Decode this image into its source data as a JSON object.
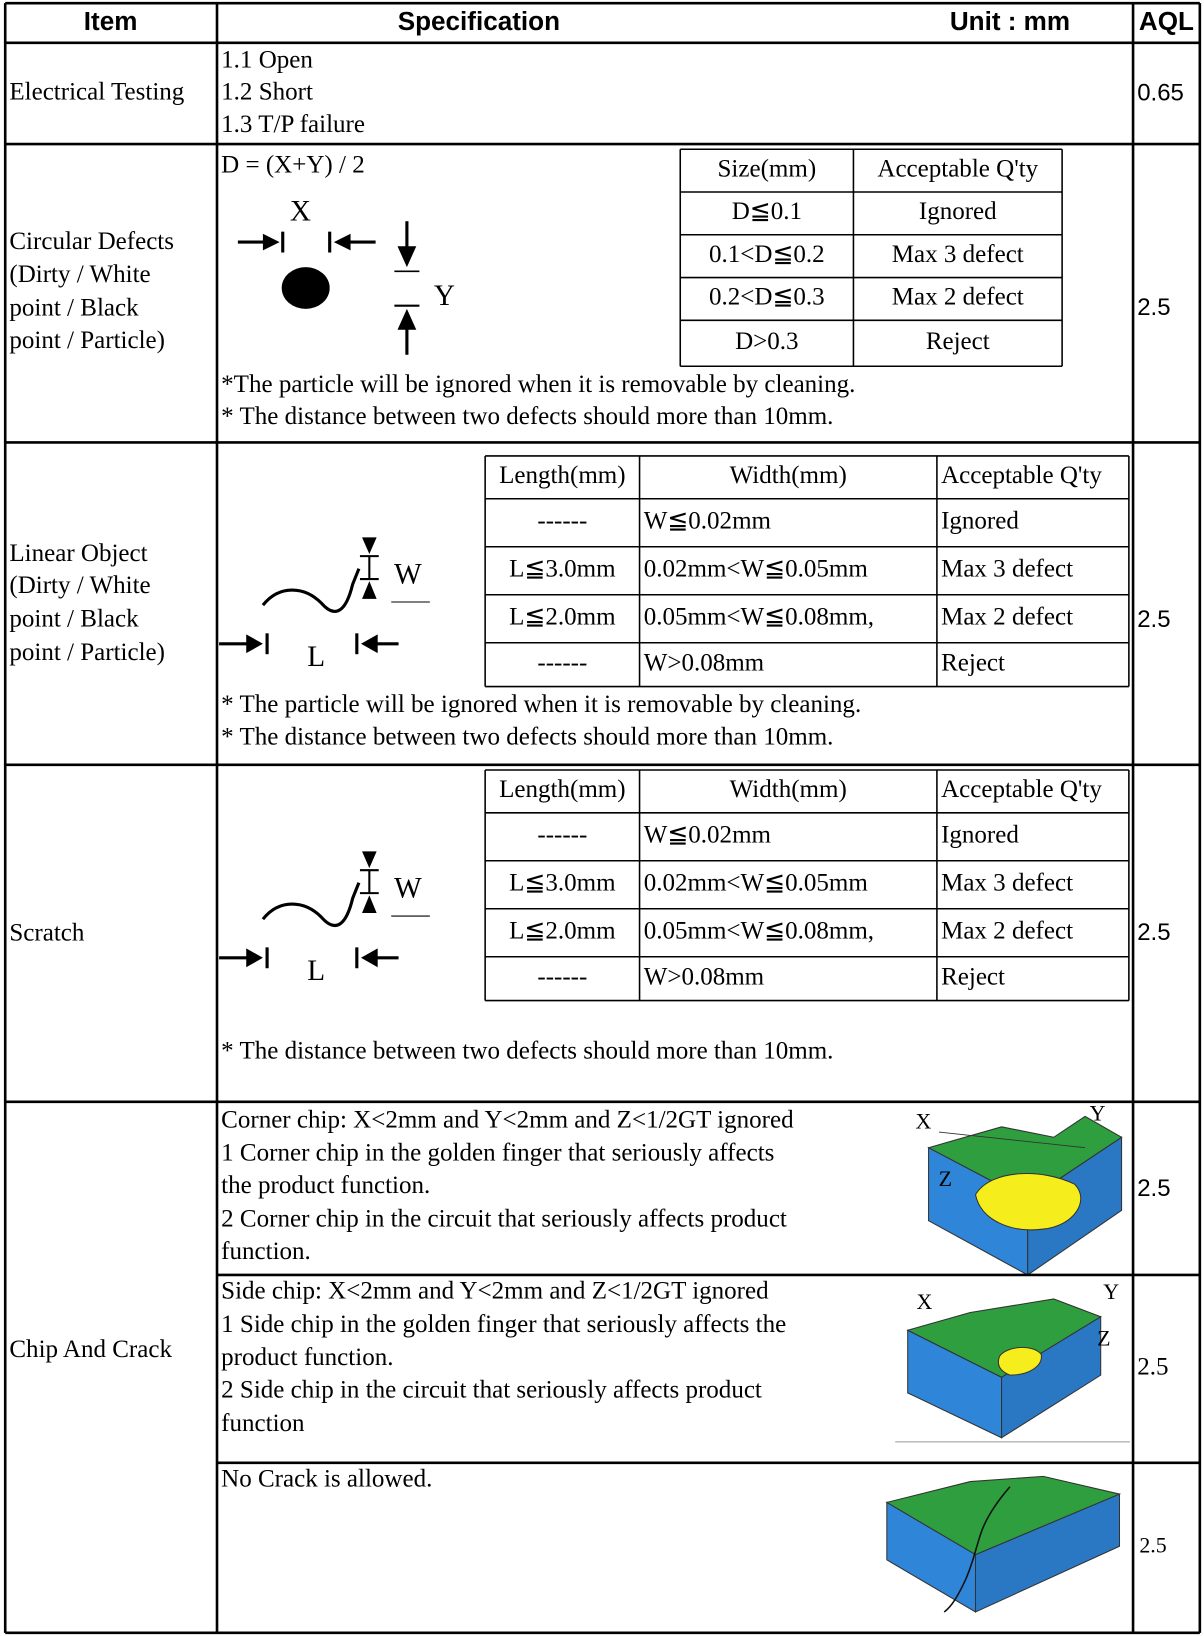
{
  "header": {
    "item": "Item",
    "specification": "Specification",
    "unit": "Unit : mm",
    "aql": "AQL"
  },
  "rows": [
    {
      "item": [
        "Electrical Testing"
      ],
      "spec": [
        "1.1 Open",
        "1.2 Short",
        "1.3 T/P failure"
      ],
      "aql": "0.65"
    },
    {
      "item": [
        "Circular Defects",
        "(Dirty / White",
        "point / Black",
        "point / Particle)"
      ],
      "formula": "D = (X+Y) / 2",
      "diagram_labels": [
        "X",
        "Y"
      ],
      "table": {
        "header": [
          "Size(mm)",
          "Acceptable Q'ty"
        ],
        "rows": [
          [
            "D≦0.1",
            "Ignored"
          ],
          [
            "0.1<D≦0.2",
            "Max 3 defect"
          ],
          [
            "0.2<D≦0.3",
            "Max 2 defect"
          ],
          [
            "D>0.3",
            "Reject"
          ]
        ]
      },
      "notes": [
        "*The particle will be ignored when it is removable by cleaning.",
        "* The distance between two defects should more than 10mm."
      ],
      "aql": "2.5"
    },
    {
      "item": [
        "Linear Object",
        "(Dirty / White",
        "point / Black",
        "point / Particle)"
      ],
      "diagram_labels": [
        "W",
        "L"
      ],
      "table": {
        "header": [
          "Length(mm)",
          "Width(mm)",
          "Acceptable Q'ty"
        ],
        "rows": [
          [
            "------",
            "W≦0.02mm",
            "Ignored"
          ],
          [
            "L≦3.0mm",
            "0.02mm<W≦0.05mm",
            "Max 3 defect"
          ],
          [
            "L≦2.0mm",
            "0.05mm<W≦0.08mm,",
            "Max 2 defect"
          ],
          [
            "------",
            "W>0.08mm",
            "Reject"
          ]
        ]
      },
      "notes": [
        "* The particle will be ignored when it is removable by cleaning.",
        "* The distance between two defects should more than 10mm."
      ],
      "aql": "2.5"
    },
    {
      "item": [
        "Scratch"
      ],
      "diagram_labels": [
        "W",
        "L"
      ],
      "table": {
        "header": [
          "Length(mm)",
          "Width(mm)",
          "Acceptable Q'ty"
        ],
        "rows": [
          [
            "------",
            "W≦0.02mm",
            "Ignored"
          ],
          [
            "L≦3.0mm",
            "0.02mm<W≦0.05mm",
            "Max 3 defect"
          ],
          [
            "L≦2.0mm",
            "0.05mm<W≦0.08mm,",
            "Max 2 defect"
          ],
          [
            "------",
            "W>0.08mm",
            "Reject"
          ]
        ]
      },
      "notes": [
        "* The distance between two defects should more than 10mm."
      ],
      "aql": "2.5"
    },
    {
      "item": [
        "Chip And Crack"
      ],
      "subrows": [
        {
          "text": [
            "Corner chip: X<2mm and Y<2mm and Z<1/2GT ignored",
            "1 Corner chip in the golden finger that seriously affects",
            "the product function.",
            "2 Corner chip in the circuit that seriously affects product",
            "function."
          ],
          "diagram_labels": [
            "X",
            "Y",
            "Z"
          ],
          "aql": "2.5"
        },
        {
          "text": [
            "Side chip: X<2mm and Y<2mm and Z<1/2GT ignored",
            "1 Side chip in the golden finger that seriously affects the",
            "product function.",
            "2 Side chip in the circuit that seriously affects product",
            "function"
          ],
          "diagram_labels": [
            "X",
            "Y",
            "Z"
          ],
          "aql": "2.5"
        },
        {
          "text": [
            "No Crack is allowed."
          ],
          "aql": "2.5"
        }
      ]
    }
  ]
}
